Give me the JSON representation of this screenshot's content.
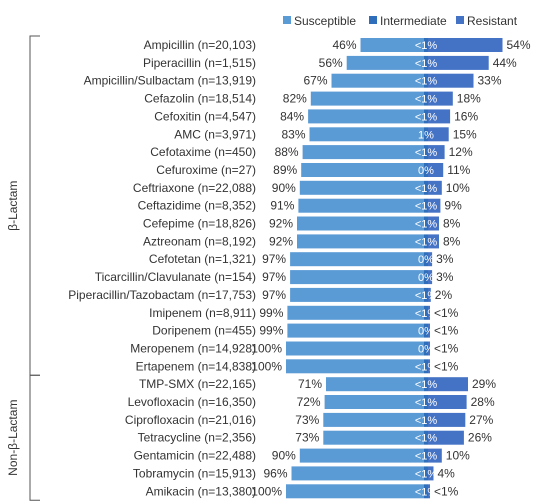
{
  "chart_data": {
    "type": "bar",
    "orientation": "horizontal",
    "stacked": true,
    "legend": {
      "placement": "top-right",
      "entries": [
        {
          "name": "Susceptible",
          "color": "#5B9BD5"
        },
        {
          "name": "Intermediate",
          "color": "#2F6EBA"
        },
        {
          "name": "Resistant",
          "color": "#4472C4"
        }
      ]
    },
    "groups": [
      {
        "label": "β-Lactam",
        "rows": [
          {
            "label": "Ampicillin (n=20,103)",
            "susceptible": 46,
            "intermediate_label": "<1%",
            "resistant": 54,
            "s_label": "46%",
            "r_label": "54%"
          },
          {
            "label": "Piperacillin (n=1,515)",
            "susceptible": 56,
            "intermediate_label": "<1%",
            "resistant": 44,
            "s_label": "56%",
            "r_label": "44%"
          },
          {
            "label": "Ampicillin/Sulbactam (n=13,919)",
            "susceptible": 67,
            "intermediate_label": "<1%",
            "resistant": 33,
            "s_label": "67%",
            "r_label": "33%"
          },
          {
            "label": "Cefazolin (n=18,514)",
            "susceptible": 82,
            "intermediate_label": "<1%",
            "resistant": 18,
            "s_label": "82%",
            "r_label": "18%"
          },
          {
            "label": "Cefoxitin (n=4,547)",
            "susceptible": 84,
            "intermediate_label": "<1%",
            "resistant": 16,
            "s_label": "84%",
            "r_label": "16%"
          },
          {
            "label": "AMC (n=3,971)",
            "susceptible": 83,
            "intermediate_label": "1%",
            "resistant": 15,
            "s_label": "83%",
            "r_label": "15%"
          },
          {
            "label": "Cefotaxime (n=450)",
            "susceptible": 88,
            "intermediate_label": "<1%",
            "resistant": 12,
            "s_label": "88%",
            "r_label": "12%"
          },
          {
            "label": "Cefuroxime (n=27)",
            "susceptible": 89,
            "intermediate_label": "0%",
            "resistant": 11,
            "s_label": "89%",
            "r_label": "11%"
          },
          {
            "label": "Ceftriaxone (n=22,088)",
            "susceptible": 90,
            "intermediate_label": "<1%",
            "resistant": 10,
            "s_label": "90%",
            "r_label": "10%"
          },
          {
            "label": "Ceftazidime (n=8,352)",
            "susceptible": 91,
            "intermediate_label": "<1%",
            "resistant": 9,
            "s_label": "91%",
            "r_label": "9%"
          },
          {
            "label": "Cefepime (n=18,826)",
            "susceptible": 92,
            "intermediate_label": "<1%",
            "resistant": 8,
            "s_label": "92%",
            "r_label": "8%"
          },
          {
            "label": "Aztreonam (n=8,192)",
            "susceptible": 92,
            "intermediate_label": "<1%",
            "resistant": 8,
            "s_label": "92%",
            "r_label": "8%"
          },
          {
            "label": "Cefotetan (n=1,321)",
            "susceptible": 97,
            "intermediate_label": "0%",
            "resistant": 3,
            "s_label": "97%",
            "r_label": "3%"
          },
          {
            "label": "Ticarcillin/Clavulanate (n=154)",
            "susceptible": 97,
            "intermediate_label": "0%",
            "resistant": 3,
            "s_label": "97%",
            "r_label": "3%"
          },
          {
            "label": "Piperacillin/Tazobactam (n=17,753)",
            "susceptible": 97,
            "intermediate_label": "<1%",
            "resistant": 2,
            "s_label": "97%",
            "r_label": "2%"
          },
          {
            "label": "Imipenem (n=8,911)",
            "susceptible": 99,
            "intermediate_label": "<1%",
            "resistant": 0.5,
            "s_label": "99%",
            "r_label": "<1%"
          },
          {
            "label": "Doripenem (n=455)",
            "susceptible": 99,
            "intermediate_label": "0%",
            "resistant": 0.5,
            "s_label": "99%",
            "r_label": "<1%"
          },
          {
            "label": "Meropenem (n=14,928)",
            "susceptible": 100,
            "intermediate_label": "0%",
            "resistant": 0.5,
            "s_label": "100%",
            "r_label": "<1%"
          },
          {
            "label": "Ertapenem (n=14,838)",
            "susceptible": 100,
            "intermediate_label": "<1%",
            "resistant": 0.5,
            "s_label": "100%",
            "r_label": "<1%"
          }
        ]
      },
      {
        "label": "Non-β-Lactam",
        "rows": [
          {
            "label": "TMP-SMX (n=22,165)",
            "susceptible": 71,
            "intermediate_label": "<1%",
            "resistant": 29,
            "s_label": "71%",
            "r_label": "29%"
          },
          {
            "label": "Levofloxacin (n=16,350)",
            "susceptible": 72,
            "intermediate_label": "<1%",
            "resistant": 28,
            "s_label": "72%",
            "r_label": "28%"
          },
          {
            "label": "Ciprofloxacin (n=21,016)",
            "susceptible": 73,
            "intermediate_label": "<1%",
            "resistant": 27,
            "s_label": "73%",
            "r_label": "27%"
          },
          {
            "label": "Tetracycline (n=2,356)",
            "susceptible": 73,
            "intermediate_label": "<1%",
            "resistant": 26,
            "s_label": "73%",
            "r_label": "26%"
          },
          {
            "label": "Gentamicin (n=22,488)",
            "susceptible": 90,
            "intermediate_label": "<1%",
            "resistant": 10,
            "s_label": "90%",
            "r_label": "10%"
          },
          {
            "label": "Tobramycin (n=15,913)",
            "susceptible": 96,
            "intermediate_label": "<1%",
            "resistant": 4,
            "s_label": "96%",
            "r_label": "4%"
          },
          {
            "label": "Amikacin (n=13,380)",
            "susceptible": 100,
            "intermediate_label": "<1%",
            "resistant": 0.5,
            "s_label": "100%",
            "r_label": "<1%"
          }
        ]
      }
    ]
  }
}
